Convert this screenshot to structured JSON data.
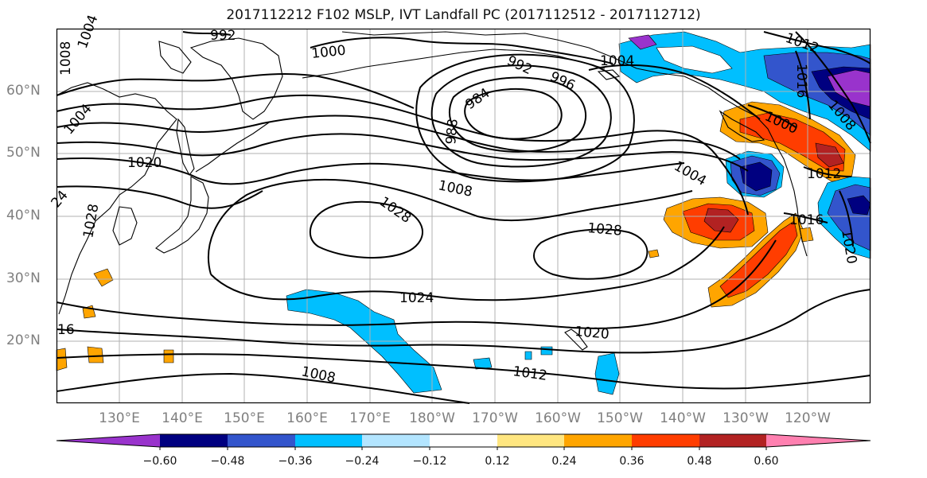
{
  "title": "2017112212 F102 MSLP, IVT Landfall PC (2017112512 - 2017112712)",
  "map": {
    "lat_labels": [
      "60°N",
      "50°N",
      "40°N",
      "30°N",
      "20°N"
    ],
    "lon_labels": [
      "130°E",
      "140°E",
      "150°E",
      "160°E",
      "170°E",
      "180°W",
      "170°W",
      "160°W",
      "150°W",
      "140°W",
      "130°W",
      "120°W"
    ],
    "isobar_labels": {
      "l992a": "992",
      "l1000a": "1000",
      "l1004tl": "1004",
      "l1008tl": "1008",
      "l1004w": "1004",
      "l1020w": "1020",
      "l1024w": "24",
      "l1028w": "1028",
      "l984": "984",
      "l988": "988",
      "l992b": "992",
      "l996": "996",
      "l1004n": "1004",
      "l1012ne": "1012",
      "l1016ne": "1016",
      "l1008ne": "1008",
      "l1000ne": "1000",
      "l1012e": "1012",
      "l1016e": "1016",
      "l1020e": "1020",
      "l1004c": "1004",
      "l1008c": "1008",
      "l1028c": "1028",
      "l1028e": "1028",
      "l1024s": "1024",
      "l1020s": "1020",
      "l1016s": "16",
      "l1012s": "1012",
      "l1008s": "1008"
    },
    "colors": {
      "purple": "#9933cc",
      "navy": "#000080",
      "royal": "#3355cc",
      "sky": "#00bfff",
      "pale": "#b3e5ff",
      "white": "#ffffff",
      "yellow": "#ffe680",
      "orange": "#ffa500",
      "red_orange": "#ff3d00",
      "dark_red": "#b22222",
      "pink": "#ff80b0"
    }
  },
  "colorbar": {
    "ticks": [
      "−0.60",
      "−0.48",
      "−0.36",
      "−0.24",
      "−0.12",
      "0.12",
      "0.24",
      "0.36",
      "0.48",
      "0.60"
    ],
    "colors": [
      "#9933cc",
      "#000080",
      "#3355cc",
      "#00bfff",
      "#b3e5ff",
      "#ffffff",
      "#ffe680",
      "#ffa500",
      "#ff3d00",
      "#b22222",
      "#ff80b0"
    ]
  }
}
